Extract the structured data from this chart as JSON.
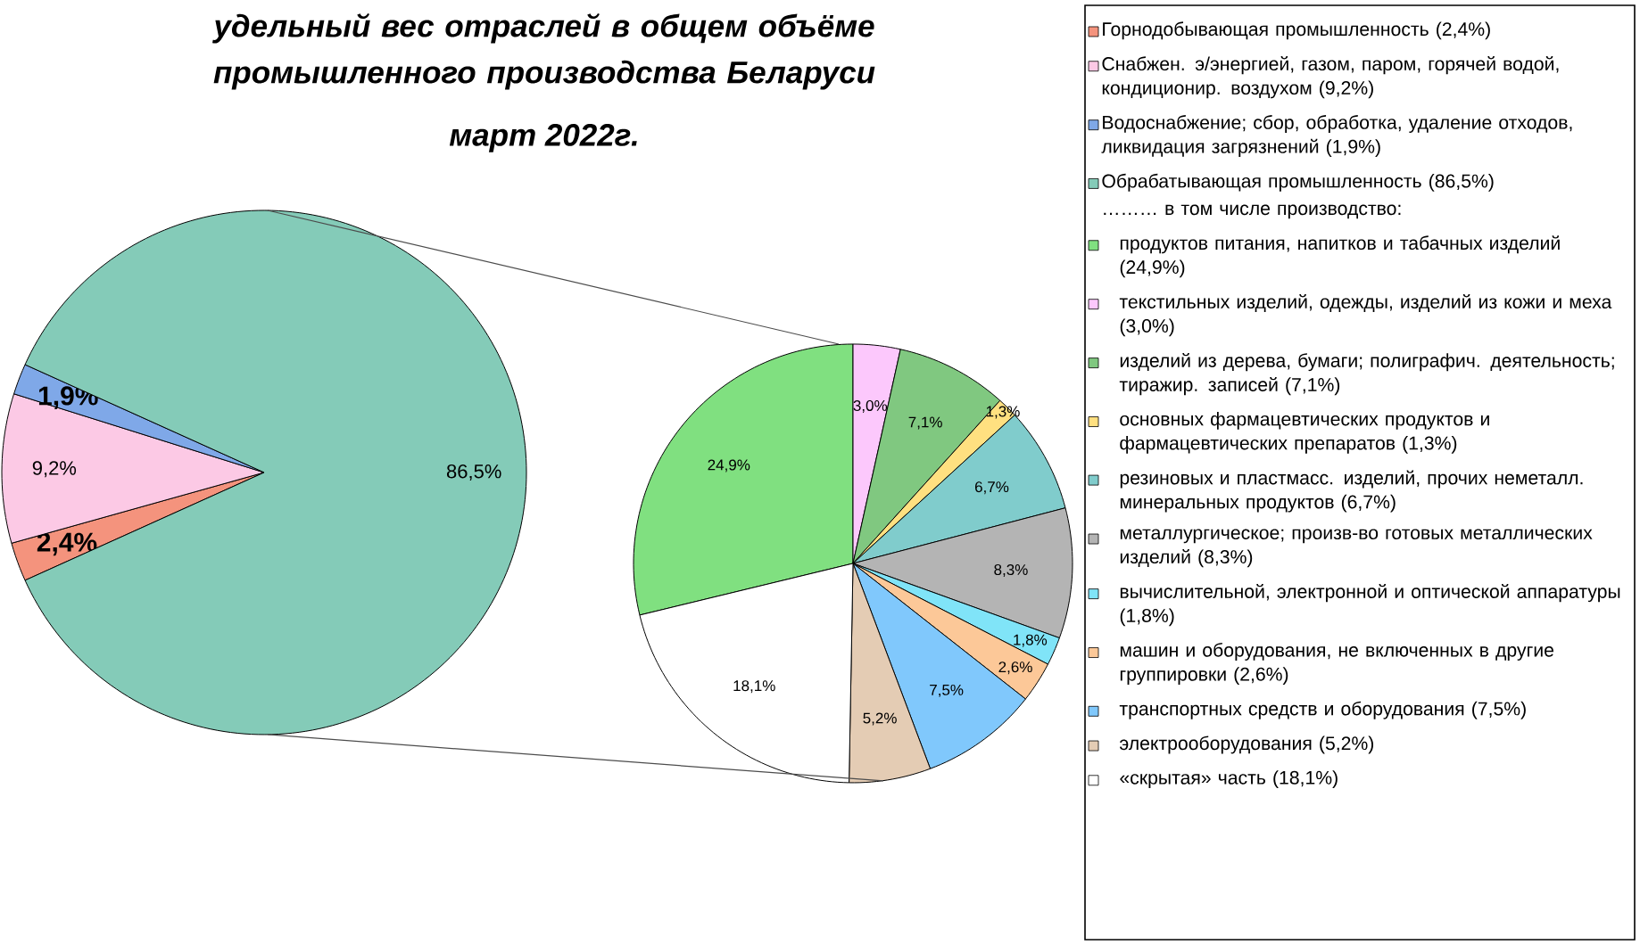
{
  "chart_data": [
    {
      "type": "pie",
      "title": "удельный вес отраслей в общем объёме промышленного производства Беларуси",
      "subtitle": "март 2022г.",
      "legend": "right",
      "categories": [
        "Горнодобывающая  промышленность  (2,4%)",
        "Снабжен. э/энергией, газом, паром, горячей водой,  кондиционир. воздухом (9,2%)",
        "Водоснабжение; сбор, обработка, удаление отходов, ликвидация  загрязнений (1,9%)",
        "Обрабатывающая  промышленность  (86,5%)"
      ],
      "values": [
        2.4,
        9.2,
        1.9,
        86.5
      ],
      "value_labels": [
        "2,4%",
        "9,2%",
        "1,9%",
        "86,5%"
      ],
      "colors": [
        "#f4937d",
        "#fcc9e5",
        "#7fa8e8",
        "#84cbb8"
      ]
    },
    {
      "type": "pie",
      "legend": "right",
      "legend_title": "……… в том  числе производство:",
      "categories": [
        "продуктов питания, напитков и табачных изделий (24,9%)",
        "текстильных изделий, одежды, изделий из кожи и меха (3,0%)",
        "изделий из дерева, бумаги;  полиграфич. деятельность;  тиражир. записей (7,1%)",
        "основных фармацевтических продуктов и фармацевтических препаратов (1,3%)",
        "резиновых и пластмасс. изделий, прочих неметалл. минеральных продуктов  (6,7%)",
        "металлургическое; произв-во готовых металлических изделий (8,3%)",
        "вычислительной,  электронной и оптической аппаратуры (1,8%)",
        "машин и оборудования, не включенных в другие группировки (2,6%)",
        "транспортных средств и оборудования (7,5%)",
        "электрооборудования (5,2%)",
        "«скрытая»  часть  (18,1%)"
      ],
      "values": [
        24.9,
        3.0,
        7.1,
        1.3,
        6.7,
        8.3,
        1.8,
        2.6,
        7.5,
        5.2,
        18.1
      ],
      "value_labels": [
        "24,9%",
        "3,0%",
        "7,1%",
        "1,3%",
        "6,7%",
        "8,3%",
        "1,8%",
        "2,6%",
        "7,5%",
        "5,2%",
        "18,1%"
      ],
      "colors": [
        "#80e080",
        "#fcc8fc",
        "#80c880",
        "#ffe080",
        "#80cccc",
        "#b4b4b4",
        "#80e4f8",
        "#fcc898",
        "#80c8fc",
        "#e4ccb4",
        "#ffffff"
      ]
    }
  ]
}
